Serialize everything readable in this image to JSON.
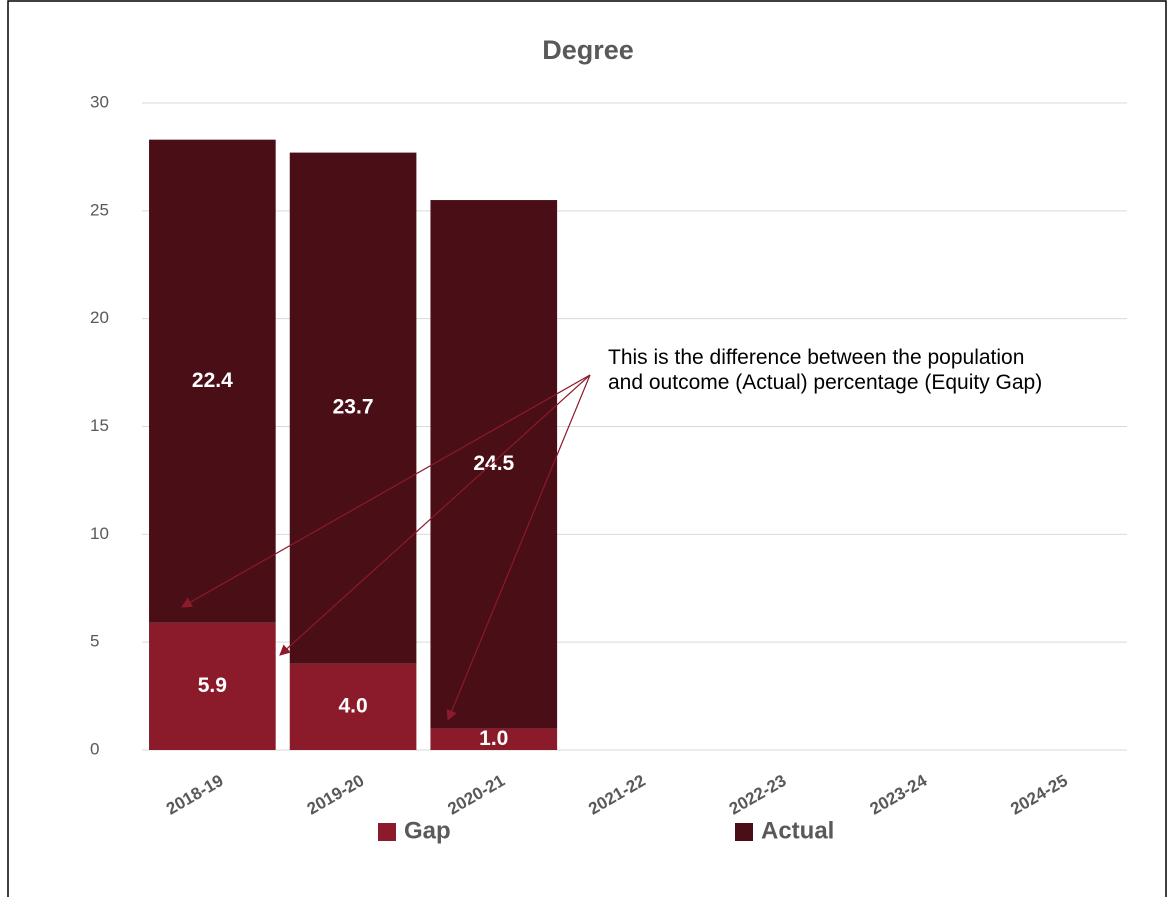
{
  "chart_data": {
    "type": "stacked_bar",
    "title": "Degree",
    "categories": [
      "2018-19",
      "2019-20",
      "2020-21",
      "2021-22",
      "2022-23",
      "2023-24",
      "2024-25"
    ],
    "series": [
      {
        "name": "Gap",
        "color": "#8b1a2a",
        "values": [
          5.9,
          4.0,
          1.0,
          null,
          null,
          null,
          null
        ],
        "value_labels": [
          "5.9",
          "4.0",
          "1.0",
          null,
          null,
          null,
          null
        ]
      },
      {
        "name": "Actual",
        "color": "#4a0e16",
        "values": [
          22.4,
          23.7,
          24.5,
          null,
          null,
          null,
          null
        ]
      }
    ],
    "ylim": [
      0,
      30
    ],
    "yticks": [
      0,
      5,
      10,
      15,
      20,
      25,
      30
    ],
    "grid": true,
    "legend": "bottom",
    "annotation": "This is the difference between the population and outcome (Actual) percentage (Equity Gap)"
  }
}
